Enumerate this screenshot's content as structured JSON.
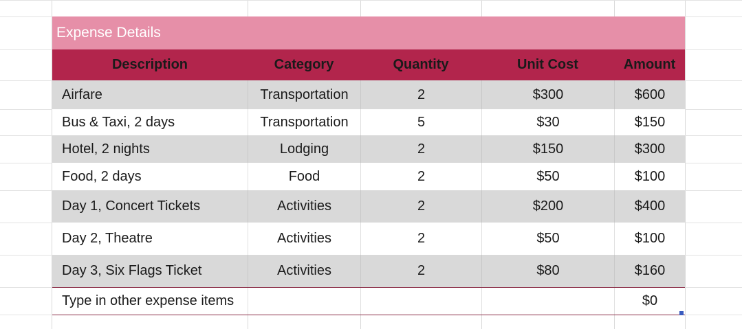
{
  "title": "Expense Details",
  "columns": [
    "Description",
    "Category",
    "Quantity",
    "Unit Cost",
    "Amount"
  ],
  "rows": [
    {
      "description": "Airfare",
      "category": "Transportation",
      "quantity": "2",
      "unit_cost": "$300",
      "amount": "$600"
    },
    {
      "description": "Bus & Taxi, 2 days",
      "category": "Transportation",
      "quantity": "5",
      "unit_cost": "$30",
      "amount": "$150"
    },
    {
      "description": "Hotel, 2 nights",
      "category": "Lodging",
      "quantity": "2",
      "unit_cost": "$150",
      "amount": "$300"
    },
    {
      "description": "Food, 2 days",
      "category": "Food",
      "quantity": "2",
      "unit_cost": "$50",
      "amount": "$100"
    },
    {
      "description": "Day 1, Concert Tickets",
      "category": "Activities",
      "quantity": "2",
      "unit_cost": "$200",
      "amount": "$400"
    },
    {
      "description": "Day 2, Theatre",
      "category": "Activities",
      "quantity": "2",
      "unit_cost": "$50",
      "amount": "$100"
    },
    {
      "description": "Day 3, Six Flags Ticket",
      "category": "Activities",
      "quantity": "2",
      "unit_cost": "$80",
      "amount": "$160"
    }
  ],
  "other_row": {
    "description": "Type in other expense items",
    "amount": "$0"
  },
  "colors": {
    "title_bg": "#e68fa8",
    "header_bg": "#b2254c",
    "shaded_row": "#d9d9d9"
  }
}
